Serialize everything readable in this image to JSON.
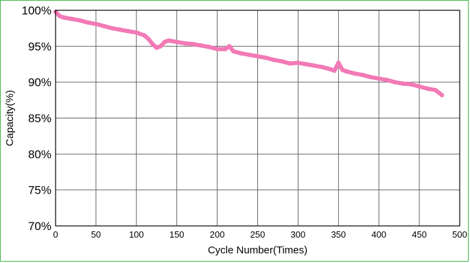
{
  "chart_data": {
    "type": "line",
    "title": "",
    "xlabel": "Cycle Number(Times)",
    "ylabel": "Capacity(%)",
    "xlim": [
      0,
      500
    ],
    "ylim": [
      70,
      100
    ],
    "x_ticks": [
      0,
      50,
      100,
      150,
      200,
      250,
      300,
      350,
      400,
      450,
      500
    ],
    "y_ticks": [
      70,
      75,
      80,
      85,
      90,
      95,
      100
    ],
    "y_tick_labels": [
      "70%",
      "75%",
      "80%",
      "85%",
      "90%",
      "95%",
      "100%"
    ],
    "grid": true,
    "line_color": "#f27ab6",
    "series": [
      {
        "x": [
          0,
          5,
          10,
          20,
          30,
          40,
          50,
          60,
          70,
          80,
          90,
          100,
          110,
          115,
          120,
          125,
          130,
          135,
          140,
          150,
          160,
          170,
          180,
          190,
          200,
          210,
          215,
          220,
          230,
          240,
          250,
          260,
          270,
          280,
          290,
          300,
          310,
          320,
          330,
          340,
          345,
          350,
          355,
          360,
          370,
          380,
          390,
          400,
          410,
          420,
          430,
          440,
          450,
          460,
          470,
          478
        ],
        "y": [
          99.8,
          99.2,
          99.0,
          98.8,
          98.6,
          98.3,
          98.1,
          97.8,
          97.5,
          97.3,
          97.1,
          96.9,
          96.5,
          96.0,
          95.3,
          94.8,
          95.0,
          95.6,
          95.8,
          95.6,
          95.4,
          95.3,
          95.1,
          94.9,
          94.6,
          94.6,
          95.0,
          94.3,
          94.0,
          93.8,
          93.6,
          93.4,
          93.1,
          92.9,
          92.6,
          92.7,
          92.5,
          92.3,
          92.1,
          91.8,
          91.6,
          92.7,
          91.7,
          91.5,
          91.2,
          91.0,
          90.7,
          90.5,
          90.3,
          90.0,
          89.8,
          89.7,
          89.4,
          89.1,
          88.9,
          88.2
        ]
      }
    ]
  }
}
